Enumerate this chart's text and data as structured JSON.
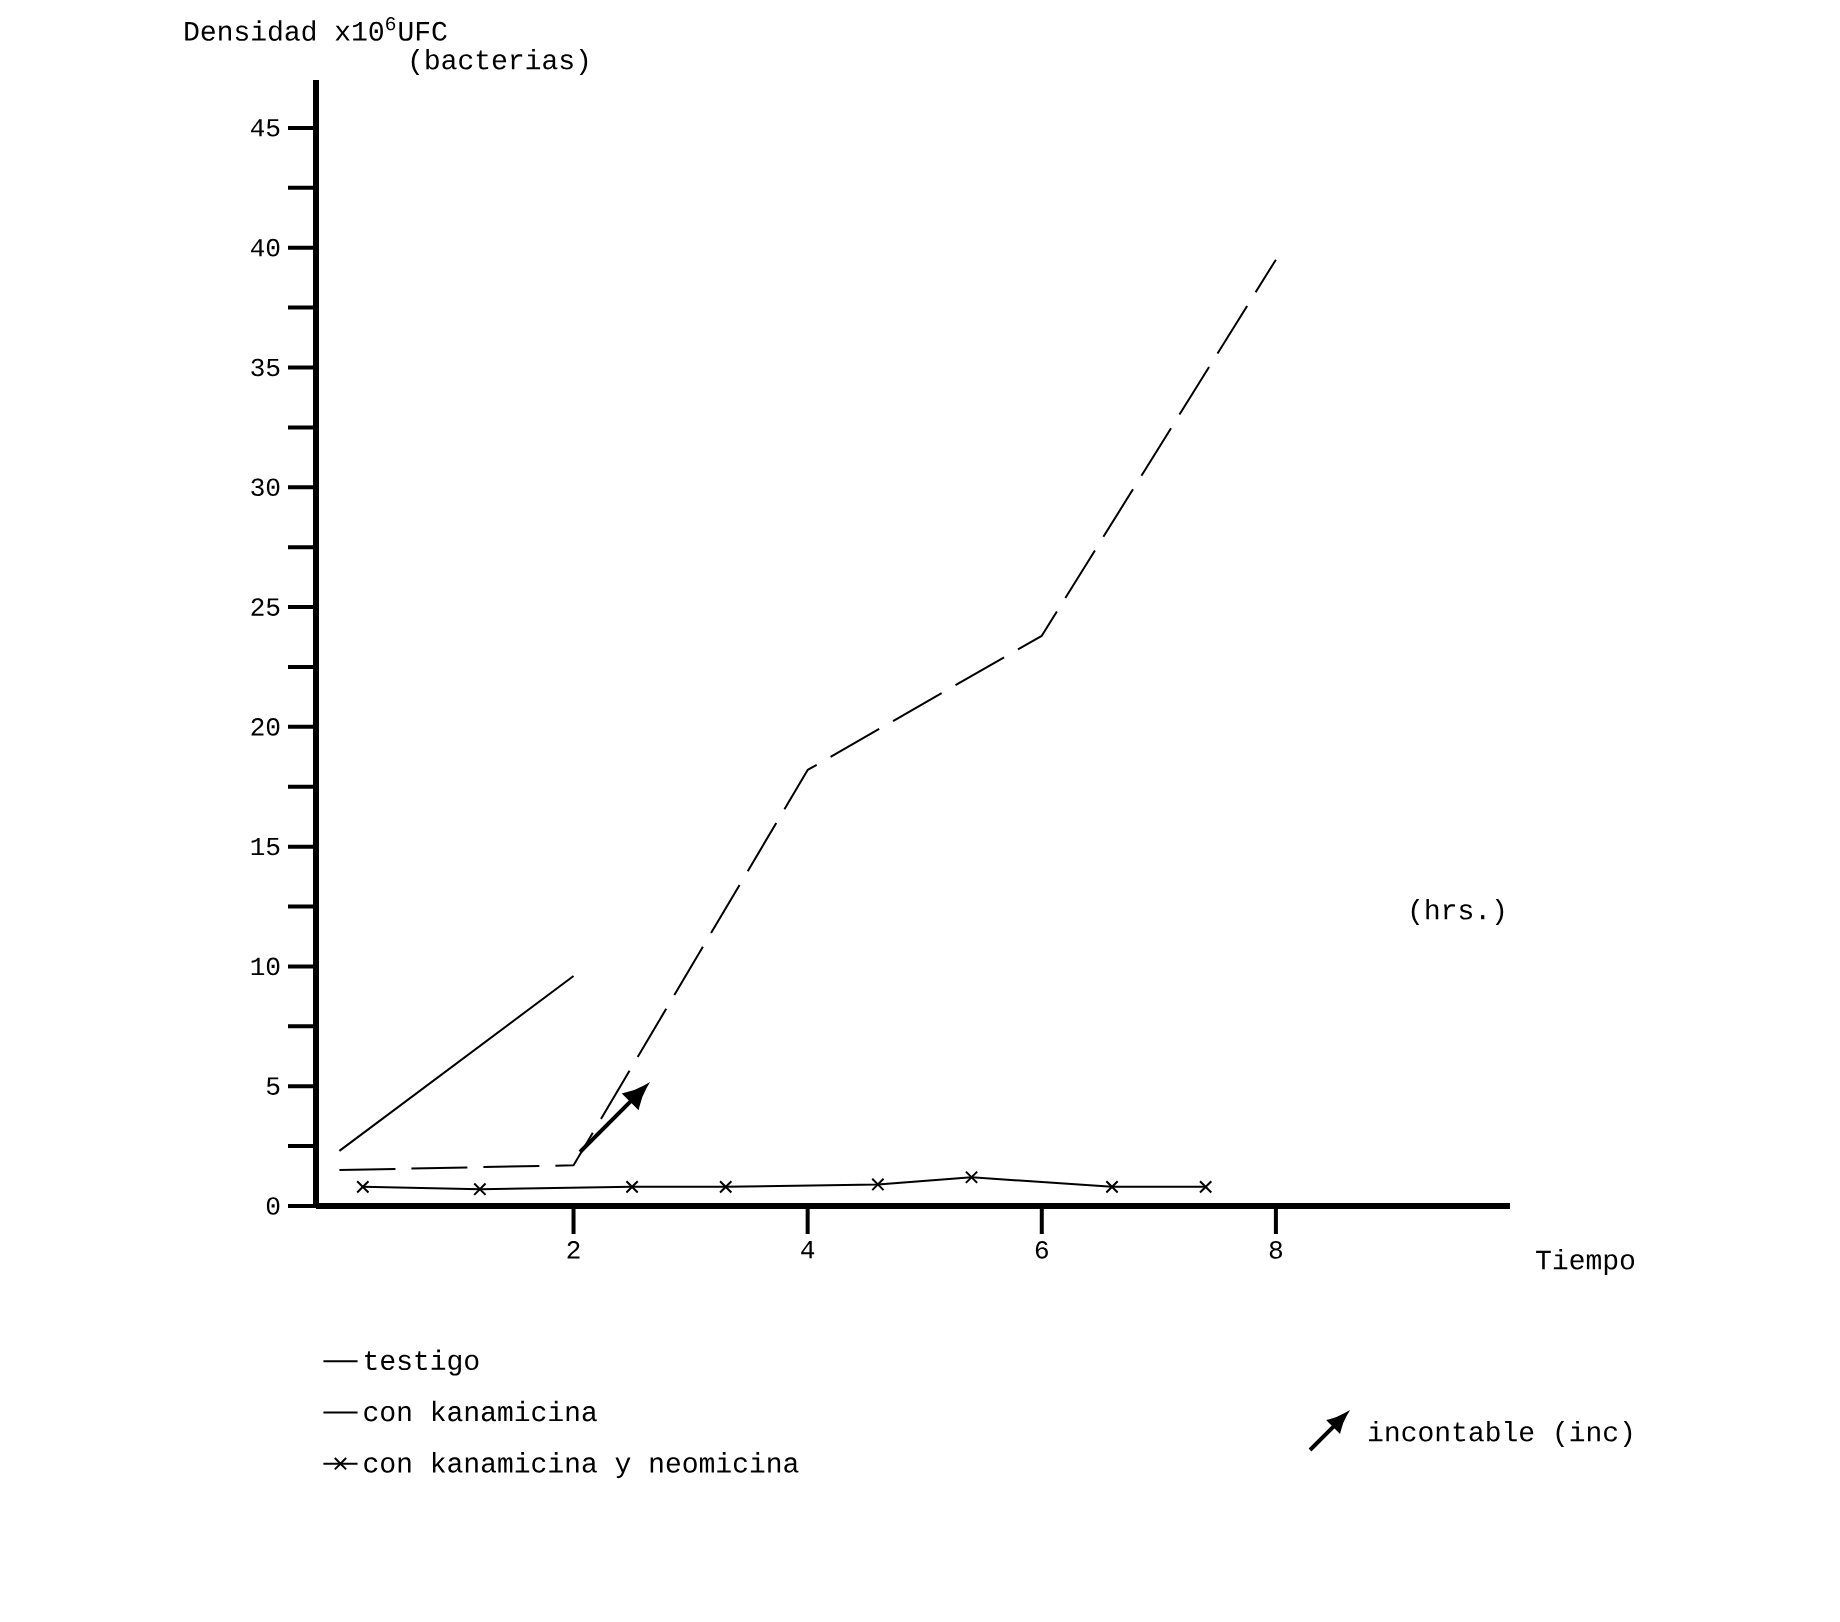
{
  "chart_data": {
    "type": "line",
    "ylabel": "Densidad x10$^{6}$UFC",
    "xlabel": "Tiempo",
    "annotations": [
      "(bacterias)",
      "(hrs.)",
      "incontable (inc)"
    ],
    "xlim": [
      -0.2,
      10
    ],
    "ylim": [
      0,
      47
    ],
    "xticks": [
      2,
      4,
      6,
      8
    ],
    "yticks": [
      0,
      {
        "value": 2.5,
        "label": null
      },
      5,
      {
        "value": 7.5,
        "label": null
      },
      10,
      {
        "value": 12.5,
        "label": null
      },
      15,
      {
        "value": 17.5,
        "label": null
      },
      20,
      {
        "value": 22.5,
        "label": null
      },
      25,
      {
        "value": 27.5,
        "label": null
      },
      30,
      {
        "value": 32.5,
        "label": null
      },
      35,
      {
        "value": 37.5,
        "label": null
      },
      40,
      {
        "value": 42.5,
        "label": null
      },
      45
    ],
    "legend": "bottom",
    "grid": false,
    "series": [
      {
        "name": "testigo",
        "color": "#000000",
        "line_style": "solid",
        "marker": "none",
        "x": [
          0,
          2
        ],
        "values": [
          2.3,
          9.6
        ]
      },
      {
        "name": "con kanamicina",
        "color": "#000000",
        "line_style": "dashed",
        "marker": "none",
        "x": [
          0,
          2,
          4,
          6,
          8
        ],
        "values": [
          1.5,
          1.7,
          18.2,
          23.8,
          39.5
        ]
      },
      {
        "name": "con kanamicina y neomicina",
        "color": "#000000",
        "line_style": "solid",
        "marker": "cross",
        "x": [
          0.2,
          1.2,
          2.5,
          3.3,
          4.6,
          5.4,
          6.6,
          7.4
        ],
        "values": [
          0.8,
          0.7,
          0.8,
          0.8,
          0.9,
          1.2,
          0.8,
          0.8
        ]
      }
    ]
  }
}
